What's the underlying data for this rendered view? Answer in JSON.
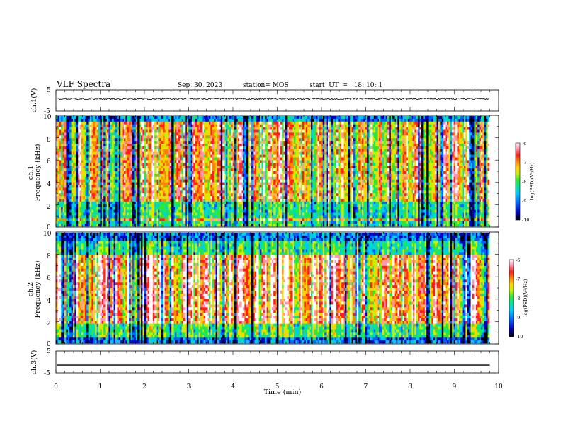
{
  "header": {
    "title": "VLF Spectra",
    "date": "Sep. 30, 2023",
    "station": "station= MOS",
    "start_ut": "start  UT  =   18: 10: 1"
  },
  "chart_data": [
    {
      "id": "ch1-waveform",
      "type": "line",
      "ylabel": "ch.1(V)",
      "ylim": [
        -5,
        5
      ],
      "yticks": [
        "5",
        "-5"
      ],
      "xlim": [
        0,
        10
      ],
      "baseline": 0.8,
      "end_time": 9.8
    },
    {
      "id": "ch1-spectrogram",
      "type": "heatmap",
      "ylabel_line1": "ch.1",
      "ylabel_line2": "Frequency (kHz)",
      "ylim": [
        0,
        10
      ],
      "yticks": [
        "0",
        "2",
        "4",
        "6",
        "8",
        "10"
      ],
      "xlim": [
        0,
        10
      ],
      "end_time": 9.8,
      "colorbar": {
        "label": "log(PSD)(V²/Hz)",
        "ticks": [
          "-6",
          "-7",
          "-8",
          "-9",
          "-10"
        ],
        "range": [
          -10,
          -6
        ]
      }
    },
    {
      "id": "ch2-spectrogram",
      "type": "heatmap",
      "ylabel_line1": "ch.2",
      "ylabel_line2": "Frequency (kHz)",
      "ylim": [
        0,
        10
      ],
      "yticks": [
        "0",
        "2",
        "4",
        "6",
        "8",
        "10"
      ],
      "xlim": [
        0,
        10
      ],
      "end_time": 9.8,
      "colorbar": {
        "label": "log(PSD)(V²/Hz)",
        "ticks": [
          "-6",
          "-7",
          "-8",
          "-9",
          "-10"
        ],
        "range": [
          -10,
          -6
        ]
      }
    },
    {
      "id": "ch3-waveform",
      "type": "line",
      "ylabel": "ch.3(V)",
      "ylim": [
        -5,
        5
      ],
      "yticks": [
        "5",
        "-5"
      ],
      "xlim": [
        0,
        10
      ],
      "baseline": -1.5,
      "end_time": 9.8
    }
  ],
  "x_axis": {
    "label": "Time (min)",
    "ticks": [
      "0",
      "1",
      "2",
      "3",
      "4",
      "5",
      "6",
      "7",
      "8",
      "9",
      "10"
    ]
  },
  "colors": {
    "colormap": [
      "#000000",
      "#0000c8",
      "#0064ff",
      "#00c8ff",
      "#00e696",
      "#32e632",
      "#c8f000",
      "#ffd200",
      "#ff8200",
      "#ff1e1e",
      "#ff96b4",
      "#ffffff"
    ]
  }
}
